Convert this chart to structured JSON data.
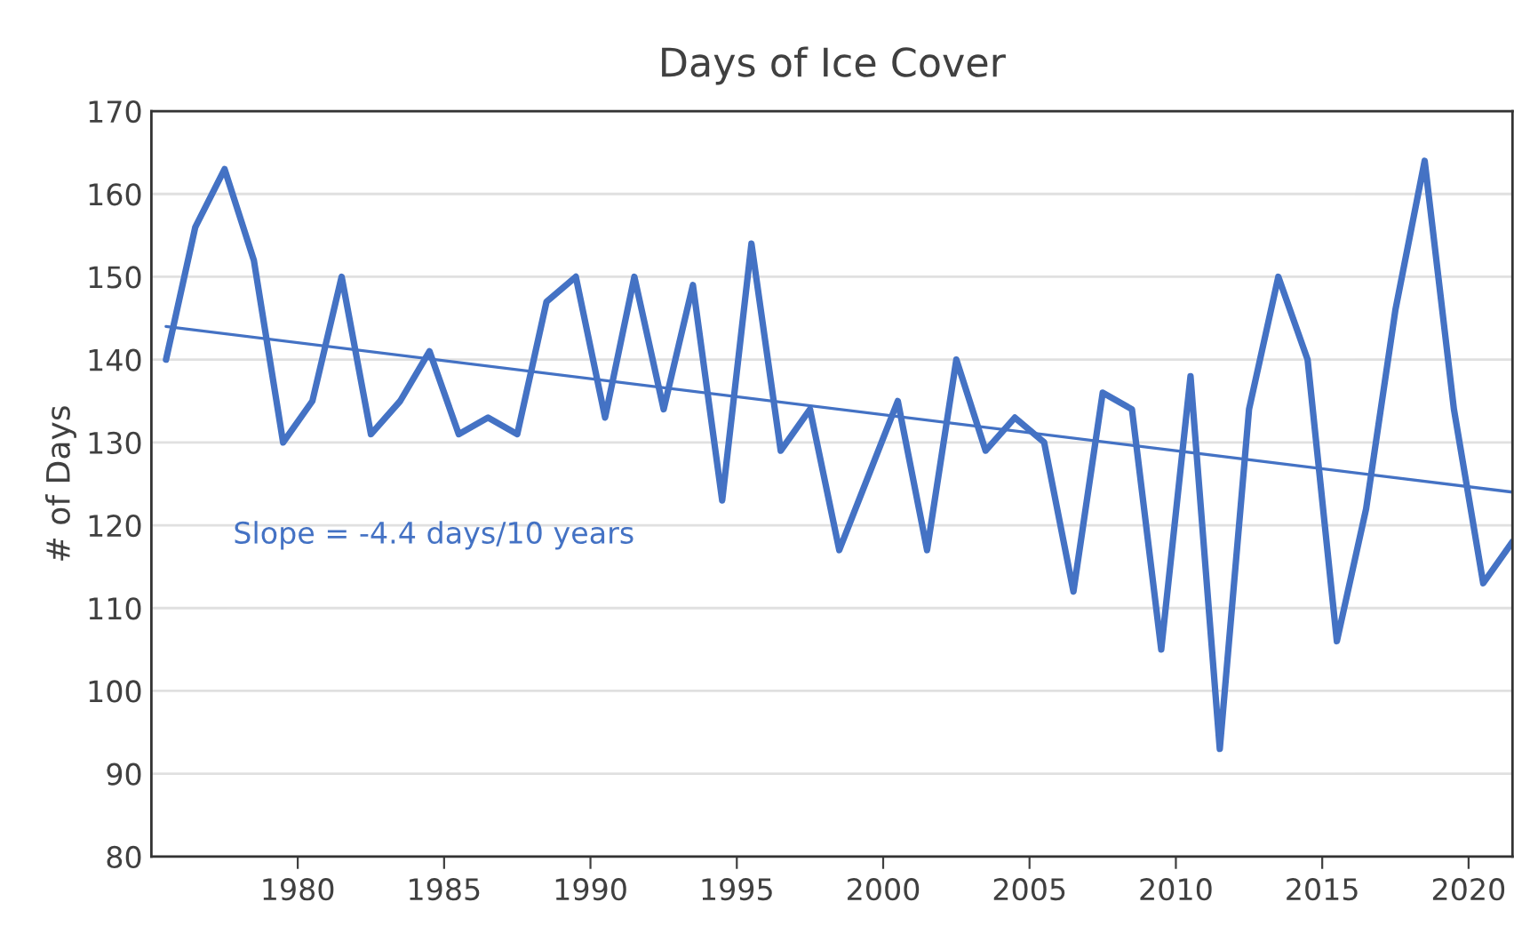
{
  "chart_data": {
    "type": "line",
    "title": "Days of Ice Cover",
    "ylabel": "# of Days",
    "x": [
      1975.5,
      1976.5,
      1977.5,
      1978.5,
      1979.5,
      1980.5,
      1981.5,
      1982.5,
      1983.5,
      1984.5,
      1985.5,
      1986.5,
      1987.5,
      1988.5,
      1989.5,
      1990.5,
      1991.5,
      1992.5,
      1993.5,
      1994.5,
      1995.5,
      1996.5,
      1997.5,
      1998.5,
      1999.5,
      2000.5,
      2001.5,
      2002.5,
      2003.5,
      2004.5,
      2005.5,
      2006.5,
      2007.5,
      2008.5,
      2009.5,
      2010.5,
      2011.5,
      2012.5,
      2013.5,
      2014.5,
      2015.5,
      2016.5,
      2017.5,
      2018.5,
      2019.5,
      2020.5,
      2021.5
    ],
    "series": [
      {
        "color": "#4472c4",
        "values": [
          140,
          156,
          163,
          152,
          130,
          135,
          150,
          131,
          135,
          141,
          131,
          133,
          131,
          147,
          150,
          133,
          150,
          134,
          149,
          123,
          154,
          129,
          134,
          117,
          126,
          135,
          117,
          140,
          129,
          133,
          130,
          112,
          136,
          134,
          105,
          138,
          93,
          134,
          150,
          140,
          106,
          122,
          146,
          164,
          134,
          113,
          118
        ]
      },
      {
        "type": "line",
        "color": "#4472c4",
        "x": [
          1975.5,
          2021.5
        ],
        "values": [
          144,
          124
        ]
      }
    ],
    "xlim": [
      1975,
      2021.5
    ],
    "xticks": [
      1980,
      1985,
      1990,
      1995,
      2000,
      2005,
      2010,
      2015,
      2020
    ],
    "ylim": [
      80,
      170
    ],
    "yticks": [
      80,
      90,
      100,
      110,
      120,
      130,
      140,
      150,
      160,
      170
    ],
    "grid": "y",
    "legend": false,
    "annotations": [
      "Slope = -4.4 days/10 years"
    ]
  }
}
